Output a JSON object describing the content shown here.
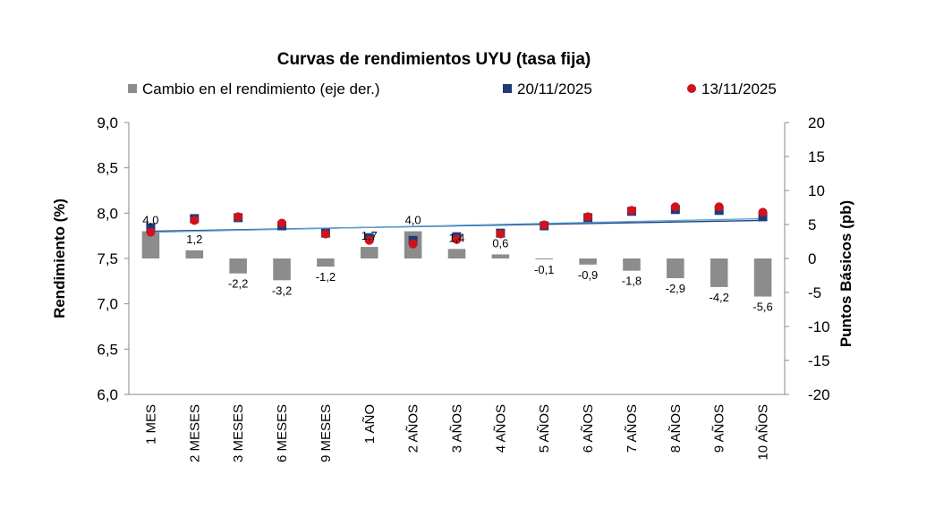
{
  "chart_data": {
    "type": "bar+scatter",
    "title": "Curvas de rendimientos UYU (tasa fija)",
    "ylabel_left": "Rendimiento (%)",
    "ylabel_right": "Puntos Básicos (pb)",
    "ylim_left": [
      6.0,
      9.0
    ],
    "ylim_right": [
      -20,
      20
    ],
    "yticks_left": [
      "6,0",
      "6,5",
      "7,0",
      "7,5",
      "8,0",
      "8,5",
      "9,0"
    ],
    "yticks_right": [
      "-20",
      "-15",
      "-10",
      "-5",
      "0",
      "5",
      "10",
      "15",
      "20"
    ],
    "categories": [
      "1 MES",
      "2 MESES",
      "3 MESES",
      "6 MESES",
      "9 MESES",
      "1 AÑO",
      "2 AÑOS",
      "3 AÑOS",
      "4 AÑOS",
      "5 AÑOS",
      "6 AÑOS",
      "7 AÑOS",
      "8 AÑOS",
      "9 AÑOS",
      "10 AÑOS"
    ],
    "series": [
      {
        "name": "Cambio en el rendimiento (eje der.)",
        "kind": "bar",
        "axis": "right",
        "color": "#8c8c8c",
        "values": [
          4.0,
          1.2,
          -2.2,
          -3.2,
          -1.2,
          1.7,
          4.0,
          1.4,
          0.6,
          -0.1,
          -0.9,
          -1.8,
          -2.9,
          -4.2,
          -5.6
        ],
        "labels": [
          "4,0",
          "1,2",
          "-2,2",
          "-3,2",
          "-1,2",
          "1,7",
          "4,0",
          "1,4",
          "0,6",
          "-0,1",
          "-0,9",
          "-1,8",
          "-2,9",
          "-4,2",
          "-5,6"
        ]
      },
      {
        "name": "20/11/2025",
        "kind": "scatter",
        "marker": "square",
        "axis": "left",
        "color": "#1f3a7a",
        "values": [
          7.84,
          7.94,
          7.95,
          7.86,
          7.78,
          7.73,
          7.7,
          7.74,
          7.78,
          7.86,
          7.95,
          8.02,
          8.04,
          8.03,
          7.96
        ]
      },
      {
        "name": "13/11/2025",
        "kind": "scatter",
        "marker": "circle",
        "axis": "left",
        "color": "#d0121b",
        "values": [
          7.79,
          7.92,
          7.96,
          7.89,
          7.77,
          7.7,
          7.66,
          7.71,
          7.77,
          7.87,
          7.96,
          8.03,
          8.07,
          8.07,
          8.01
        ]
      }
    ],
    "trendlines": [
      {
        "name": "20/11/2025",
        "color": "#1f3a7a",
        "start": 7.8,
        "end": 7.92
      },
      {
        "name": "13/11/2025",
        "color": "#5ba3d8",
        "start": 7.79,
        "end": 7.94
      }
    ],
    "legend": [
      "Cambio en el rendimiento (eje der.)",
      "20/11/2025",
      "13/11/2025"
    ],
    "legend_position": "top"
  }
}
